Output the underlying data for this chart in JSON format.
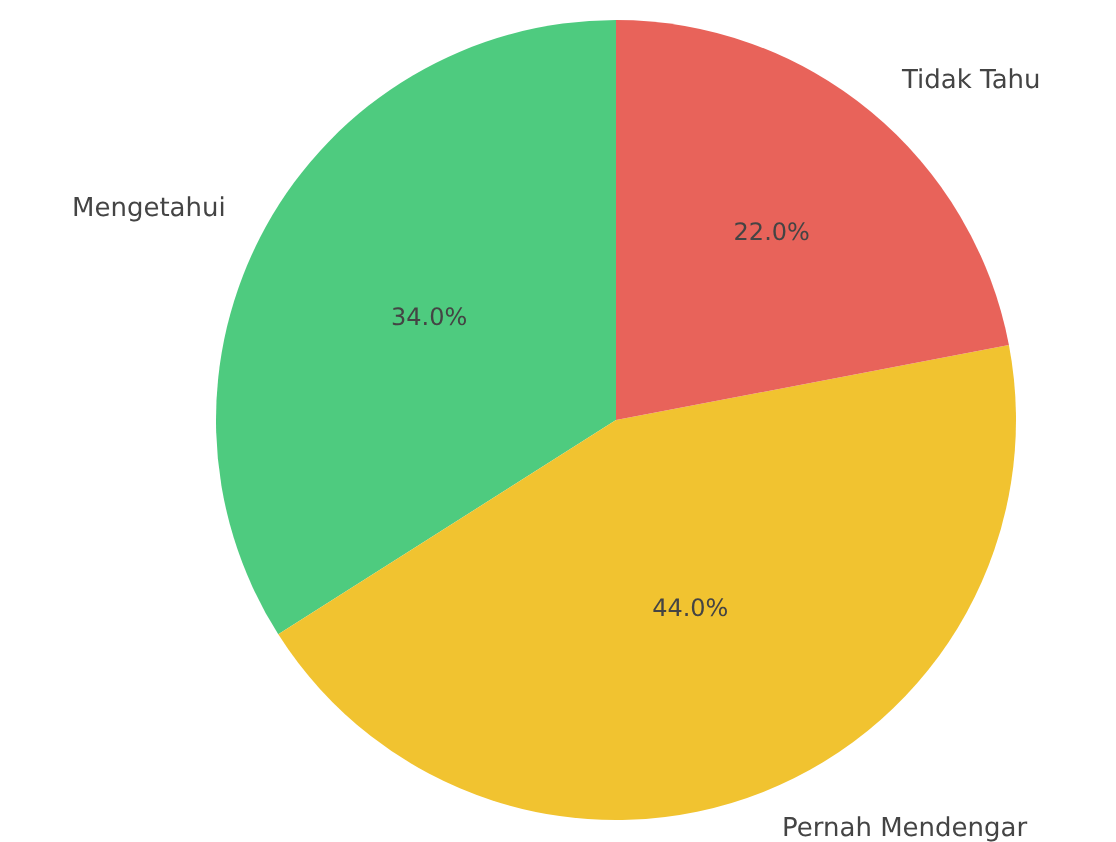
{
  "chart_data": {
    "type": "pie",
    "categories": [
      "Mengetahui",
      "Pernah Mendengar",
      "Tidak Tahu"
    ],
    "values": [
      34,
      44,
      22
    ],
    "colors": [
      "#4ecb7f",
      "#f1c330",
      "#e8635a"
    ],
    "value_labels": [
      "34.0%",
      "44.0%",
      "22.0%"
    ]
  }
}
